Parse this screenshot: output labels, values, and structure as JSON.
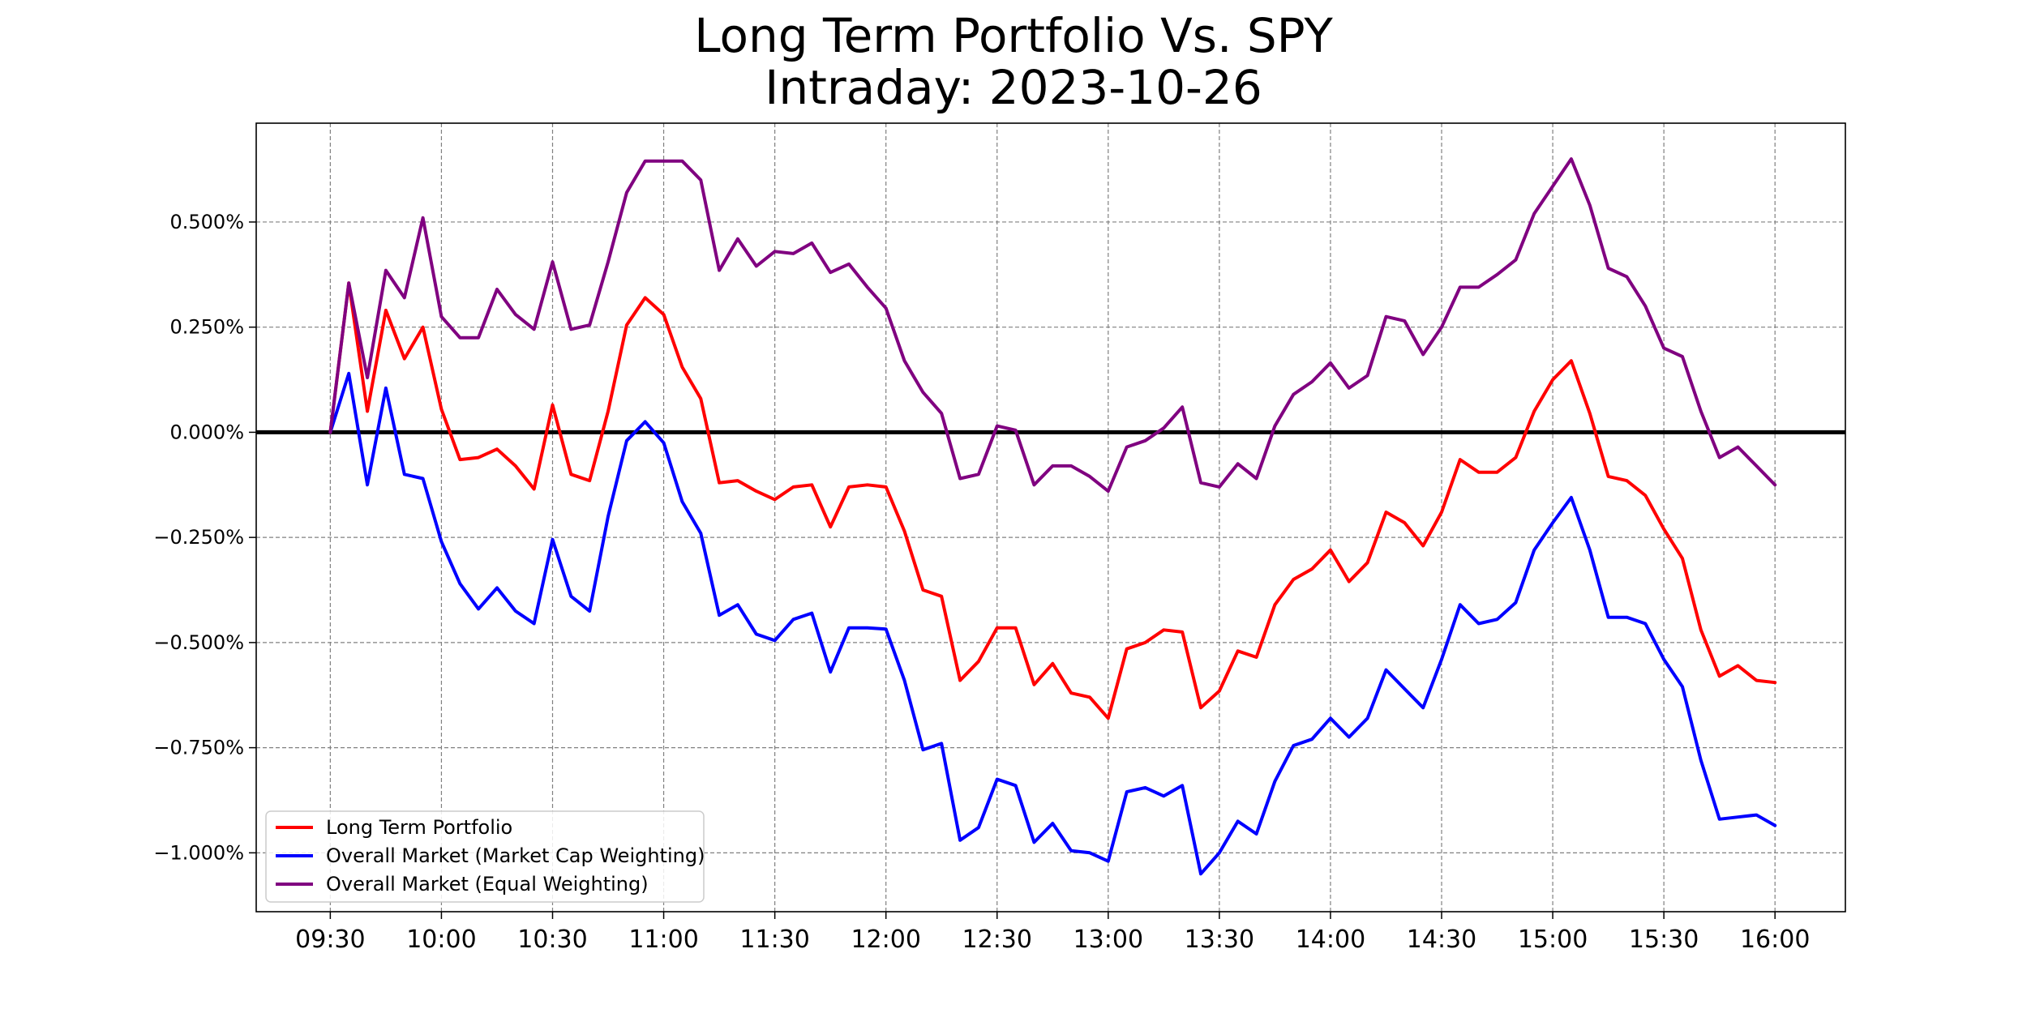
{
  "chart_data": {
    "type": "line",
    "title_lines": [
      "Long Term Portfolio Vs. SPY",
      "Intraday: 2023-10-26"
    ],
    "xlabel": "",
    "ylabel": "",
    "x_unit": "minutes after 09:30",
    "x": [
      0,
      5,
      10,
      15,
      20,
      25,
      30,
      35,
      40,
      45,
      50,
      55,
      60,
      65,
      70,
      75,
      80,
      85,
      90,
      95,
      100,
      105,
      110,
      115,
      120,
      125,
      130,
      135,
      140,
      145,
      150,
      155,
      160,
      165,
      170,
      175,
      180,
      185,
      190,
      195,
      200,
      205,
      210,
      215,
      220,
      225,
      230,
      235,
      240,
      245,
      250,
      255,
      260,
      265,
      270,
      275,
      280,
      285,
      290,
      295,
      300,
      305,
      310,
      315,
      320,
      325,
      330,
      335,
      340,
      345,
      350,
      355,
      360,
      365,
      370,
      375,
      380,
      385,
      390
    ],
    "x_ticks": [
      "09:30",
      "10:00",
      "10:30",
      "11:00",
      "11:30",
      "12:00",
      "12:30",
      "13:00",
      "13:30",
      "14:00",
      "14:30",
      "15:00",
      "15:30",
      "16:00"
    ],
    "x_tick_values": [
      0,
      30,
      60,
      90,
      120,
      150,
      180,
      210,
      240,
      270,
      300,
      330,
      360,
      390
    ],
    "xlim": [
      -20,
      409
    ],
    "y_ticks": [
      0.5,
      0.25,
      0.0,
      -0.25,
      -0.5,
      -0.75,
      -1.0
    ],
    "y_tick_labels": [
      "0.500%",
      "0.250%",
      "0.000%",
      "−0.250%",
      "−0.500%",
      "−0.750%",
      "−1.000%"
    ],
    "ylim": [
      -1.14,
      0.735
    ],
    "grid": true,
    "zero_line": true,
    "legend_position": "lower-left",
    "series": [
      {
        "name": "Long Term Portfolio",
        "color": "#ff0000",
        "values": [
          0.0,
          0.355,
          0.05,
          0.29,
          0.175,
          0.25,
          0.055,
          -0.065,
          -0.06,
          -0.04,
          -0.08,
          -0.135,
          0.065,
          -0.1,
          -0.115,
          0.05,
          0.255,
          0.32,
          0.28,
          0.155,
          0.08,
          -0.12,
          -0.115,
          -0.14,
          -0.16,
          -0.13,
          -0.125,
          -0.225,
          -0.13,
          -0.125,
          -0.13,
          -0.235,
          -0.375,
          -0.39,
          -0.59,
          -0.545,
          -0.465,
          -0.465,
          -0.6,
          -0.55,
          -0.62,
          -0.63,
          -0.68,
          -0.515,
          -0.5,
          -0.47,
          -0.475,
          -0.655,
          -0.615,
          -0.52,
          -0.535,
          -0.41,
          -0.35,
          -0.325,
          -0.28,
          -0.355,
          -0.31,
          -0.19,
          -0.215,
          -0.27,
          -0.19,
          -0.065,
          -0.095,
          -0.095,
          -0.06,
          0.05,
          0.125,
          0.17,
          0.045,
          -0.105,
          -0.115,
          -0.15,
          -0.23,
          -0.3,
          -0.47,
          -0.58,
          -0.555,
          -0.59,
          -0.595
        ]
      },
      {
        "name": "Overall Market (Market Cap Weighting)",
        "color": "#0000ff",
        "values": [
          0.0,
          0.14,
          -0.125,
          0.105,
          -0.1,
          -0.11,
          -0.26,
          -0.36,
          -0.42,
          -0.37,
          -0.425,
          -0.455,
          -0.255,
          -0.39,
          -0.425,
          -0.2,
          -0.02,
          0.025,
          -0.025,
          -0.165,
          -0.24,
          -0.435,
          -0.41,
          -0.48,
          -0.495,
          -0.445,
          -0.43,
          -0.57,
          -0.465,
          -0.465,
          -0.468,
          -0.59,
          -0.755,
          -0.74,
          -0.97,
          -0.94,
          -0.825,
          -0.84,
          -0.975,
          -0.93,
          -0.995,
          -1.0,
          -1.02,
          -0.855,
          -0.845,
          -0.865,
          -0.84,
          -1.05,
          -1.0,
          -0.925,
          -0.955,
          -0.83,
          -0.745,
          -0.73,
          -0.68,
          -0.725,
          -0.68,
          -0.565,
          -0.61,
          -0.655,
          -0.54,
          -0.41,
          -0.455,
          -0.445,
          -0.405,
          -0.28,
          -0.215,
          -0.155,
          -0.28,
          -0.44,
          -0.44,
          -0.455,
          -0.54,
          -0.605,
          -0.78,
          -0.92,
          -0.915,
          -0.91,
          -0.935
        ]
      },
      {
        "name": "Overall Market (Equal Weighting)",
        "color": "#800080",
        "values": [
          0.0,
          0.355,
          0.13,
          0.385,
          0.32,
          0.51,
          0.275,
          0.225,
          0.225,
          0.34,
          0.28,
          0.245,
          0.405,
          0.245,
          0.255,
          0.405,
          0.57,
          0.645,
          0.645,
          0.645,
          0.6,
          0.385,
          0.46,
          0.395,
          0.43,
          0.425,
          0.45,
          0.38,
          0.4,
          0.345,
          0.295,
          0.17,
          0.095,
          0.045,
          -0.11,
          -0.1,
          0.015,
          0.005,
          -0.125,
          -0.08,
          -0.08,
          -0.105,
          -0.14,
          -0.035,
          -0.02,
          0.01,
          0.06,
          -0.12,
          -0.13,
          -0.075,
          -0.11,
          0.015,
          0.09,
          0.12,
          0.165,
          0.105,
          0.135,
          0.275,
          0.265,
          0.185,
          0.25,
          0.345,
          0.345,
          0.375,
          0.41,
          0.52,
          0.585,
          0.65,
          0.54,
          0.39,
          0.37,
          0.3,
          0.2,
          0.18,
          0.05,
          -0.06,
          -0.035,
          -0.08,
          -0.125
        ]
      }
    ]
  }
}
